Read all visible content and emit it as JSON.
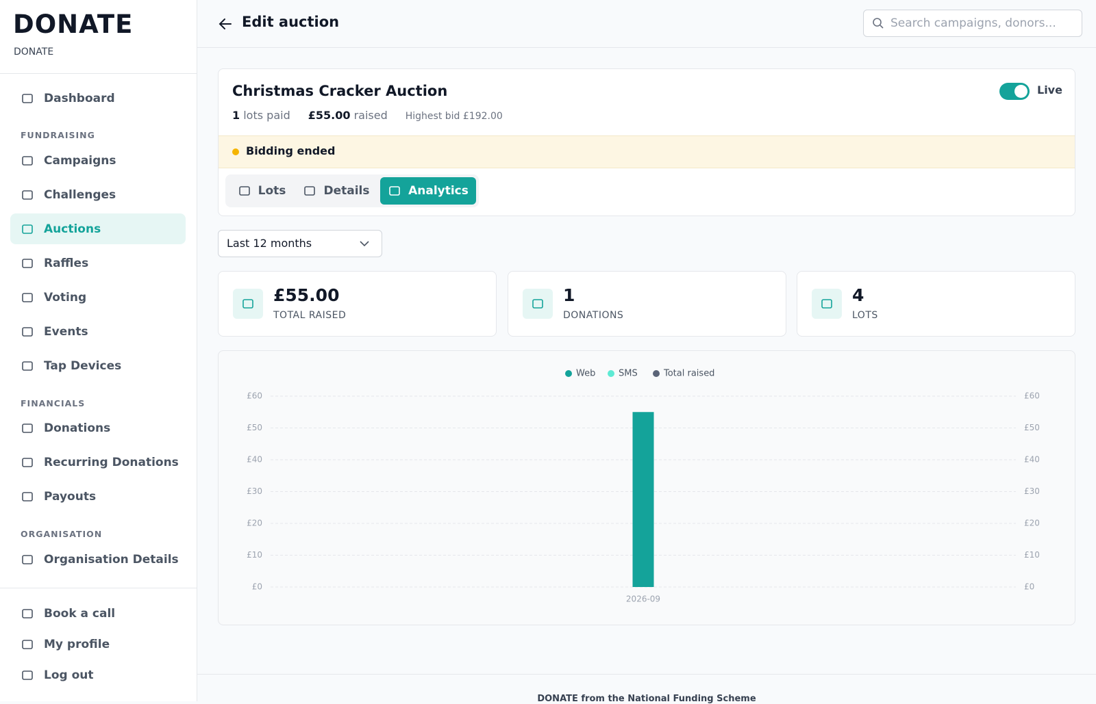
{
  "brand": {
    "logo": "DONATE",
    "subtitle": "DONATE"
  },
  "nav": [
    {
      "label": "Dashboard"
    },
    {
      "heading": "FUNDRAISING"
    },
    {
      "label": "Campaigns"
    },
    {
      "label": "Challenges"
    },
    {
      "label": "Auctions",
      "active": true
    },
    {
      "label": "Raffles"
    },
    {
      "label": "Voting"
    },
    {
      "label": "Events"
    },
    {
      "label": "Tap Devices"
    },
    {
      "heading": "FINANCIALS"
    },
    {
      "label": "Donations"
    },
    {
      "label": "Recurring Donations"
    },
    {
      "label": "Payouts"
    },
    {
      "heading": "ORGANISATION"
    },
    {
      "label": "Organisation Details"
    }
  ],
  "account_nav": [
    {
      "label": "Book a call"
    },
    {
      "label": "My profile"
    },
    {
      "label": "Log out"
    }
  ],
  "header": {
    "title": "Edit auction",
    "search_placeholder": "Search campaigns, donors..."
  },
  "auction": {
    "title": "Christmas Cracker Auction",
    "status": "Live",
    "lots_paid": "1",
    "lots_paid_label": "lots paid",
    "raised": "£55.00",
    "raised_label": "raised",
    "highest_bid": "Highest bid £192.00",
    "banner": "Bidding ended",
    "tabs": [
      {
        "label": "Lots"
      },
      {
        "label": "Details"
      },
      {
        "label": "Analytics",
        "active": true
      }
    ]
  },
  "filter": "Last 12 months",
  "stats": [
    {
      "value": "£55.00",
      "label": "TOTAL RAISED"
    },
    {
      "value": "1",
      "label": "DONATIONS"
    },
    {
      "value": "4",
      "label": "LOTS"
    }
  ],
  "chart_data": {
    "type": "bar",
    "categories": [
      "2026-09"
    ],
    "series": [
      {
        "name": "Web",
        "color": "#14a39a",
        "values": [
          55
        ]
      },
      {
        "name": "SMS",
        "color": "#5eead4",
        "values": [
          0
        ]
      },
      {
        "name": "Total raised",
        "color": "#5b6478",
        "values": [
          55
        ],
        "axis": "y2",
        "type": "line"
      }
    ],
    "stacked": true,
    "ylim": [
      0,
      60
    ],
    "yticks": [
      {
        "value": 0,
        "label": "£0"
      },
      {
        "value": 10,
        "label": "£10"
      },
      {
        "value": 20,
        "label": "£20"
      },
      {
        "value": 30,
        "label": "£30"
      },
      {
        "value": 40,
        "label": "£40"
      },
      {
        "value": 50,
        "label": "£50"
      },
      {
        "value": 60,
        "label": "£60"
      }
    ],
    "y2lim": [
      0,
      60
    ],
    "y2ticks": [
      {
        "value": 0,
        "label": "£0"
      },
      {
        "value": 10,
        "label": "£10"
      },
      {
        "value": 20,
        "label": "£20"
      },
      {
        "value": 30,
        "label": "£30"
      },
      {
        "value": 40,
        "label": "£40"
      },
      {
        "value": 50,
        "label": "£50"
      },
      {
        "value": 60,
        "label": "£60"
      }
    ],
    "grid": true,
    "legend": "top"
  },
  "footer": "DONATE from the National Funding Scheme"
}
